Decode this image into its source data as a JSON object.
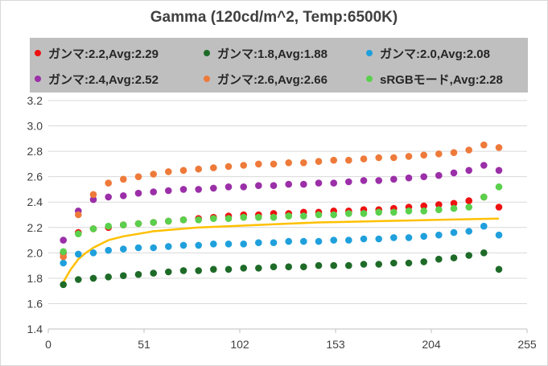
{
  "chart_data": {
    "type": "scatter",
    "title": "Gamma (120cd/m^2, Temp:6500K)",
    "xlabel": "",
    "ylabel": "",
    "xlim": [
      0,
      255
    ],
    "ylim": [
      1.4,
      3.2
    ],
    "x_ticks": [
      "0",
      "51",
      "102",
      "153",
      "204",
      "255"
    ],
    "y_ticks": [
      "1.4",
      "1.6",
      "1.8",
      "2.0",
      "2.2",
      "2.4",
      "2.6",
      "2.8",
      "3.0",
      "3.2"
    ],
    "grid": "horizontal",
    "legend_position": "top",
    "x": [
      8,
      16,
      24,
      32,
      40,
      48,
      56,
      64,
      72,
      80,
      88,
      96,
      104,
      112,
      120,
      128,
      136,
      144,
      152,
      160,
      168,
      176,
      184,
      192,
      200,
      208,
      216,
      224,
      232,
      240
    ],
    "series": [
      {
        "name": "ガンマ:2.2,Avg:2.29",
        "color": "#ee1111",
        "values": [
          2.0,
          2.16,
          2.19,
          2.2,
          2.22,
          2.23,
          2.24,
          2.25,
          2.26,
          2.27,
          2.28,
          2.29,
          2.3,
          2.3,
          2.31,
          2.31,
          2.32,
          2.32,
          2.33,
          2.33,
          2.34,
          2.34,
          2.35,
          2.36,
          2.37,
          2.38,
          2.39,
          2.41,
          2.44,
          2.36
        ]
      },
      {
        "name": "ガンマ:1.8,Avg:1.88",
        "color": "#1e6b28",
        "values": [
          1.75,
          1.79,
          1.8,
          1.81,
          1.82,
          1.83,
          1.84,
          1.85,
          1.86,
          1.86,
          1.87,
          1.87,
          1.88,
          1.88,
          1.89,
          1.89,
          1.89,
          1.9,
          1.9,
          1.9,
          1.91,
          1.91,
          1.92,
          1.92,
          1.93,
          1.95,
          1.96,
          1.98,
          2.0,
          1.87
        ]
      },
      {
        "name": "ガンマ:2.0,Avg:2.08",
        "color": "#1fa0dc",
        "values": [
          1.92,
          1.99,
          2.0,
          2.02,
          2.03,
          2.04,
          2.04,
          2.05,
          2.06,
          2.06,
          2.07,
          2.07,
          2.07,
          2.08,
          2.08,
          2.09,
          2.09,
          2.09,
          2.1,
          2.1,
          2.11,
          2.11,
          2.12,
          2.12,
          2.13,
          2.14,
          2.16,
          2.17,
          2.21,
          2.14
        ]
      },
      {
        "name": "ガンマ:2.4,Avg:2.52",
        "color": "#9b2fa8",
        "values": [
          2.1,
          2.33,
          2.42,
          2.44,
          2.45,
          2.47,
          2.48,
          2.49,
          2.5,
          2.5,
          2.51,
          2.52,
          2.52,
          2.53,
          2.53,
          2.54,
          2.54,
          2.55,
          2.55,
          2.56,
          2.57,
          2.57,
          2.58,
          2.59,
          2.6,
          2.61,
          2.63,
          2.65,
          2.69,
          2.65
        ]
      },
      {
        "name": "ガンマ:2.6,Avg:2.66",
        "color": "#ee7a3a",
        "values": [
          1.97,
          2.3,
          2.46,
          2.55,
          2.58,
          2.6,
          2.62,
          2.64,
          2.65,
          2.66,
          2.67,
          2.68,
          2.69,
          2.7,
          2.7,
          2.71,
          2.71,
          2.72,
          2.73,
          2.73,
          2.74,
          2.75,
          2.75,
          2.76,
          2.77,
          2.78,
          2.79,
          2.81,
          2.85,
          2.83
        ]
      },
      {
        "name": "sRGBモード,Avg:2.28",
        "color": "#5ad04c",
        "values": [
          2.01,
          2.15,
          2.19,
          2.21,
          2.22,
          2.23,
          2.24,
          2.25,
          2.26,
          2.26,
          2.27,
          2.27,
          2.28,
          2.28,
          2.28,
          2.29,
          2.29,
          2.3,
          2.3,
          2.31,
          2.31,
          2.32,
          2.32,
          2.33,
          2.33,
          2.34,
          2.35,
          2.36,
          2.44,
          2.52
        ]
      }
    ],
    "curve": {
      "color": "#ffc000",
      "x": [
        8,
        10,
        12,
        14,
        16,
        20,
        24,
        28,
        32,
        40,
        48,
        56,
        64,
        80,
        96,
        112,
        128,
        144,
        160,
        176,
        192,
        208,
        224,
        240
      ],
      "values": [
        1.77,
        1.82,
        1.87,
        1.91,
        1.95,
        2.0,
        2.04,
        2.07,
        2.1,
        2.13,
        2.15,
        2.17,
        2.18,
        2.2,
        2.21,
        2.22,
        2.23,
        2.24,
        2.245,
        2.25,
        2.255,
        2.26,
        2.265,
        2.27
      ]
    }
  }
}
